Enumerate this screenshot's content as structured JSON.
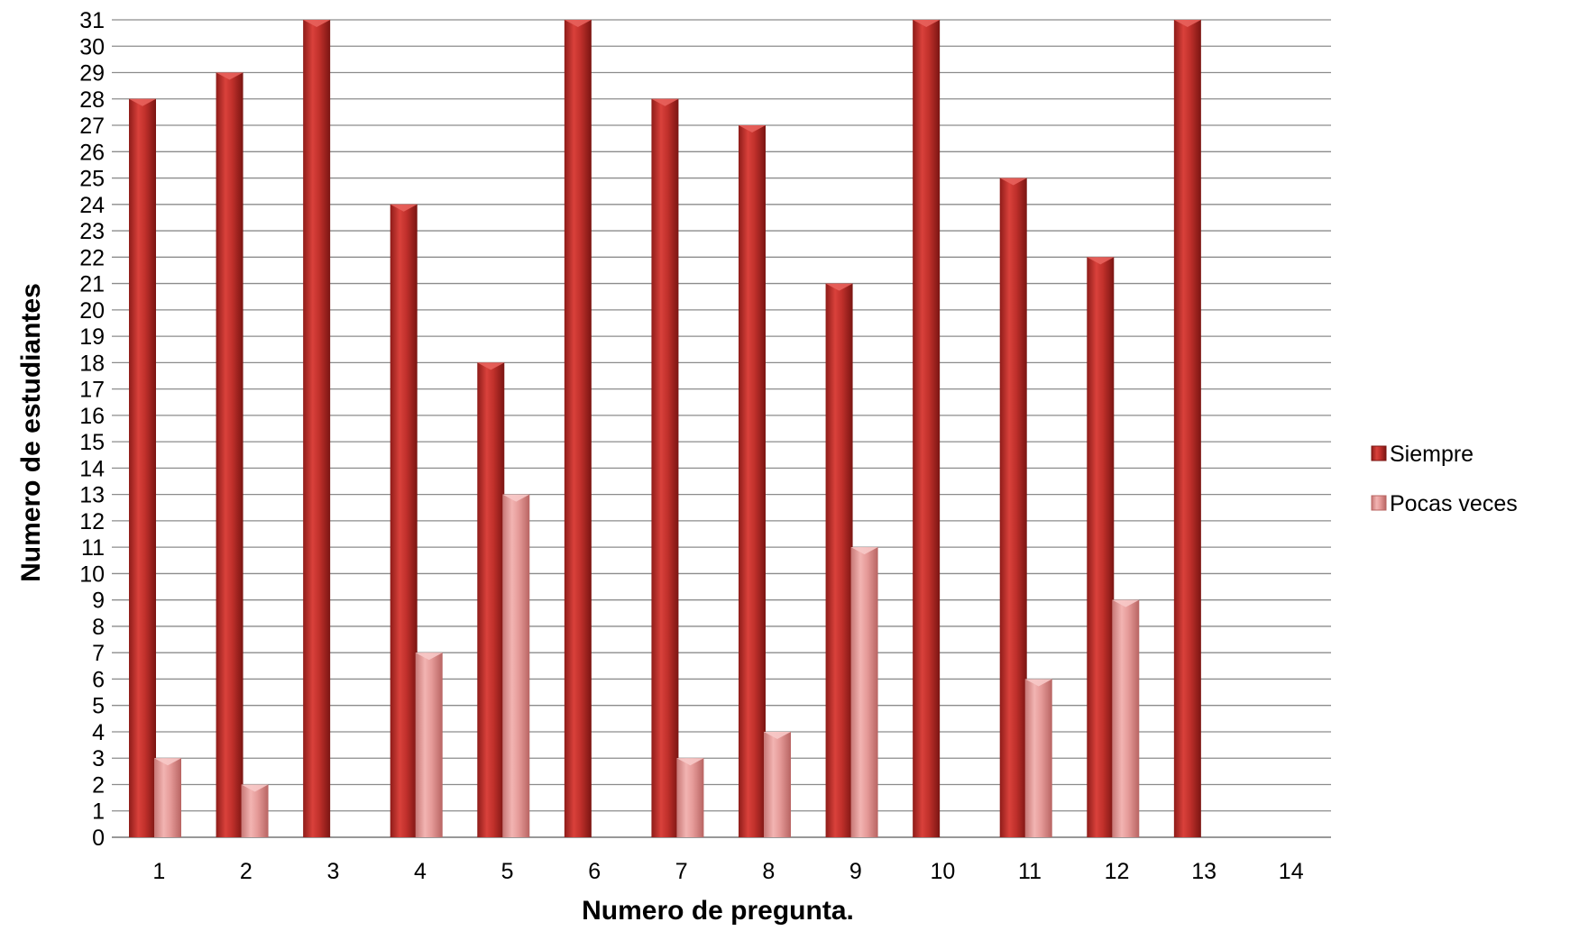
{
  "chart_data": {
    "type": "bar",
    "xlabel": "Numero de pregunta.",
    "ylabel": "Numero de estudiantes",
    "ylim": [
      0,
      31
    ],
    "y_tick_step": 1,
    "grid": true,
    "legend_position": "right",
    "categories": [
      "1",
      "2",
      "3",
      "4",
      "5",
      "6",
      "7",
      "8",
      "9",
      "10",
      "11",
      "12",
      "13",
      "14"
    ],
    "series": [
      {
        "name": "Siempre",
        "color": "#c0302b",
        "values": [
          28,
          29,
          31,
          24,
          18,
          31,
          28,
          27,
          21,
          31,
          25,
          22,
          31,
          null
        ]
      },
      {
        "name": "Pocas veces",
        "color": "#e59a98",
        "values": [
          3,
          2,
          null,
          7,
          13,
          null,
          3,
          4,
          11,
          null,
          6,
          9,
          null,
          null
        ]
      }
    ]
  }
}
